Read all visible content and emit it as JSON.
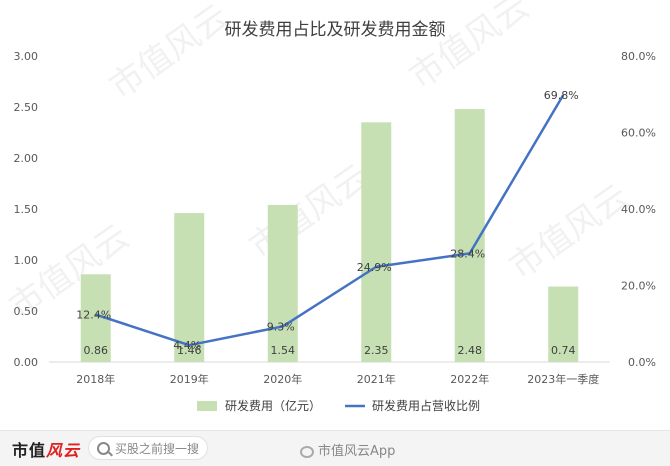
{
  "chart_data": {
    "type": "bar+line",
    "title": "研发费用占比及研发费用金额",
    "categories": [
      "2018年",
      "2019年",
      "2020年",
      "2021年",
      "2022年",
      "2023年一季度"
    ],
    "series": [
      {
        "name": "研发费用（亿元）",
        "type": "bar",
        "axis": "left",
        "color": "#c6e0b4",
        "values": [
          0.86,
          1.46,
          1.54,
          2.35,
          2.48,
          0.74
        ],
        "labels": [
          "0.86",
          "1.46",
          "1.54",
          "2.35",
          "2.48",
          "0.74"
        ]
      },
      {
        "name": "研发费用占营收比例",
        "type": "line",
        "axis": "right",
        "color": "#4472c4",
        "values": [
          12.4,
          4.4,
          9.3,
          24.9,
          28.4,
          69.8
        ],
        "labels": [
          "12.4%",
          "4.4%",
          "9.3%",
          "24.9%",
          "28.4%",
          "69.8%"
        ]
      }
    ],
    "y_left": {
      "min": 0,
      "max": 3.0,
      "ticks": [
        "0.00",
        "0.50",
        "1.00",
        "1.50",
        "2.00",
        "2.50",
        "3.00"
      ]
    },
    "y_right": {
      "min": 0,
      "max": 80,
      "ticks": [
        "0.0%",
        "20.0%",
        "40.0%",
        "60.0%",
        "80.0%"
      ]
    },
    "legend": "bottom",
    "grid": false
  },
  "watermark": {
    "text": "市值风云"
  },
  "footer": {
    "brand": "市值",
    "brand_accent": "风云",
    "search_placeholder": "买股之前搜一搜",
    "weibo_text": "市值风云App"
  }
}
